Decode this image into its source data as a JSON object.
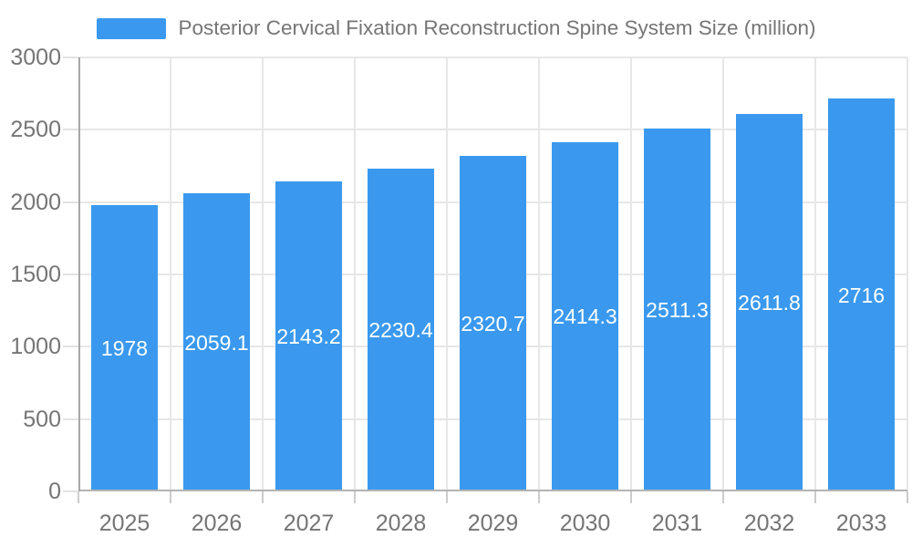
{
  "colors": {
    "bar": "#3A99EE",
    "grid": "#E7E7E7",
    "axis": "#B3B3B3",
    "axis_label_text": "#757575",
    "value_label_text": "#FFFFFF",
    "background": "#FFFFFF"
  },
  "legend": {
    "label": "Posterior Cervical Fixation Reconstruction Spine System Size (million)"
  },
  "chart_data": {
    "type": "bar",
    "title": "Posterior Cervical Fixation Reconstruction Spine System Size (million)",
    "categories": [
      "2025",
      "2026",
      "2027",
      "2028",
      "2029",
      "2030",
      "2031",
      "2032",
      "2033"
    ],
    "values": [
      1978,
      2059.1,
      2143.2,
      2230.4,
      2320.7,
      2414.3,
      2511.3,
      2611.8,
      2716
    ],
    "value_labels": [
      "1978",
      "2059.1",
      "2143.2",
      "2230.4",
      "2320.7",
      "2414.3",
      "2511.3",
      "2611.8",
      "2716"
    ],
    "series_name": "Posterior Cervical Fixation Reconstruction Spine System Size (million)",
    "xlabel": "",
    "ylabel": "",
    "ylim": [
      0,
      3000
    ],
    "yticks": [
      0,
      500,
      1000,
      1500,
      2000,
      2500,
      3000
    ],
    "grid": true,
    "legend_position": "top",
    "value_label_position": "inside-center"
  }
}
